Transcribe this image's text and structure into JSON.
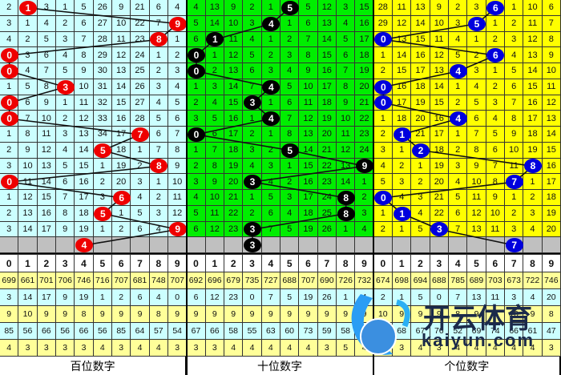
{
  "colors": {
    "panel_bg": [
      "#ccffff",
      "#00ee00",
      "#ffff00"
    ],
    "ball": [
      "#ee0000",
      "#000000",
      "#0000dd"
    ],
    "stat_bg": [
      "#ffff99",
      "#ccffff"
    ]
  },
  "panels": [
    {
      "label": "百位数字",
      "draws": [
        1,
        9,
        8,
        0,
        0,
        3,
        0,
        0,
        7,
        5,
        8,
        0,
        6,
        5,
        9,
        4
      ],
      "rows": [
        [
          2,
          1,
          3,
          1,
          5,
          26,
          9,
          21,
          6,
          4
        ],
        [
          3,
          1,
          4,
          2,
          6,
          27,
          10,
          22,
          7,
          9
        ],
        [
          4,
          2,
          5,
          3,
          7,
          28,
          11,
          23,
          8,
          1
        ],
        [
          0,
          3,
          6,
          4,
          8,
          29,
          12,
          24,
          1,
          2
        ],
        [
          0,
          4,
          7,
          5,
          9,
          30,
          13,
          25,
          2,
          3
        ],
        [
          1,
          5,
          8,
          3,
          10,
          31,
          14,
          26,
          3,
          4
        ],
        [
          0,
          6,
          9,
          1,
          11,
          32,
          15,
          27,
          4,
          5
        ],
        [
          0,
          7,
          10,
          2,
          12,
          33,
          16,
          28,
          5,
          6
        ],
        [
          1,
          8,
          11,
          3,
          13,
          34,
          17,
          7,
          6,
          7
        ],
        [
          2,
          9,
          12,
          4,
          14,
          5,
          18,
          1,
          7,
          8
        ],
        [
          3,
          10,
          13,
          5,
          15,
          1,
          19,
          2,
          8,
          9
        ],
        [
          0,
          11,
          14,
          6,
          16,
          2,
          20,
          3,
          1,
          10
        ],
        [
          1,
          12,
          15,
          7,
          17,
          3,
          6,
          4,
          2,
          11
        ],
        [
          2,
          13,
          16,
          8,
          18,
          5,
          1,
          5,
          3,
          12
        ],
        [
          3,
          14,
          17,
          9,
          19,
          1,
          2,
          6,
          4,
          9
        ]
      ],
      "stats": [
        [
          699,
          661,
          701,
          706,
          746,
          716,
          707,
          681,
          748,
          707
        ],
        [
          3,
          14,
          17,
          9,
          19,
          1,
          2,
          6,
          4,
          0
        ],
        [
          9,
          10,
          9,
          9,
          8,
          9,
          9,
          9,
          8,
          9
        ],
        [
          85,
          56,
          66,
          56,
          66,
          56,
          85,
          64,
          57,
          54
        ],
        [
          4,
          3,
          3,
          3,
          3,
          4,
          3,
          4,
          4,
          3
        ]
      ]
    },
    {
      "label": "十位数字",
      "draws": [
        5,
        4,
        1,
        0,
        0,
        4,
        3,
        4,
        0,
        5,
        9,
        3,
        8,
        8,
        3,
        3
      ],
      "rows": [
        [
          4,
          13,
          9,
          2,
          1,
          5,
          5,
          12,
          3,
          15
        ],
        [
          5,
          14,
          10,
          3,
          4,
          1,
          6,
          13,
          4,
          16
        ],
        [
          6,
          1,
          11,
          4,
          1,
          2,
          7,
          14,
          5,
          17
        ],
        [
          0,
          1,
          12,
          5,
          2,
          3,
          8,
          15,
          6,
          18
        ],
        [
          0,
          2,
          13,
          6,
          3,
          4,
          9,
          16,
          7,
          19
        ],
        [
          1,
          3,
          14,
          7,
          4,
          5,
          10,
          17,
          8,
          20
        ],
        [
          2,
          4,
          15,
          3,
          1,
          6,
          11,
          18,
          9,
          21
        ],
        [
          3,
          5,
          16,
          1,
          4,
          7,
          12,
          19,
          10,
          22
        ],
        [
          0,
          6,
          17,
          2,
          1,
          8,
          13,
          20,
          11,
          23
        ],
        [
          1,
          7,
          18,
          3,
          2,
          5,
          14,
          21,
          12,
          24
        ],
        [
          2,
          8,
          19,
          4,
          3,
          1,
          15,
          22,
          13,
          9
        ],
        [
          3,
          9,
          20,
          3,
          4,
          2,
          16,
          23,
          14,
          1
        ],
        [
          4,
          10,
          21,
          1,
          5,
          3,
          17,
          24,
          8,
          2
        ],
        [
          5,
          11,
          22,
          2,
          6,
          4,
          18,
          25,
          8,
          3
        ],
        [
          6,
          12,
          23,
          3,
          7,
          5,
          19,
          26,
          1,
          4
        ]
      ],
      "stats": [
        [
          692,
          696,
          679,
          735,
          727,
          688,
          707,
          690,
          726,
          732
        ],
        [
          6,
          12,
          23,
          0,
          7,
          5,
          19,
          26,
          1,
          4
        ],
        [
          9,
          9,
          9,
          9,
          9,
          9,
          9,
          9,
          9,
          9
        ],
        [
          67,
          66,
          58,
          55,
          63,
          60,
          73,
          59,
          58,
          56
        ],
        [
          3,
          3,
          4,
          4,
          4,
          4,
          4,
          3,
          5,
          4
        ]
      ]
    },
    {
      "label": "个位数字",
      "draws": [
        6,
        5,
        0,
        6,
        4,
        0,
        0,
        4,
        1,
        2,
        8,
        7,
        0,
        1,
        3,
        7
      ],
      "rows": [
        [
          28,
          11,
          13,
          9,
          2,
          3,
          6,
          1,
          10,
          6
        ],
        [
          29,
          12,
          14,
          10,
          3,
          5,
          1,
          2,
          11,
          7
        ],
        [
          0,
          13,
          15,
          11,
          4,
          1,
          2,
          3,
          12,
          8
        ],
        [
          1,
          14,
          16,
          12,
          5,
          2,
          6,
          4,
          13,
          9
        ],
        [
          2,
          15,
          17,
          13,
          4,
          3,
          1,
          5,
          14,
          10
        ],
        [
          0,
          16,
          18,
          14,
          1,
          4,
          2,
          6,
          15,
          11
        ],
        [
          0,
          17,
          19,
          15,
          2,
          5,
          3,
          7,
          16,
          12
        ],
        [
          1,
          18,
          20,
          16,
          4,
          6,
          4,
          8,
          17,
          13
        ],
        [
          2,
          1,
          21,
          17,
          1,
          7,
          5,
          9,
          18,
          14
        ],
        [
          3,
          1,
          2,
          18,
          2,
          8,
          6,
          10,
          19,
          15
        ],
        [
          4,
          2,
          1,
          19,
          3,
          9,
          7,
          11,
          8,
          16
        ],
        [
          5,
          3,
          2,
          20,
          4,
          10,
          8,
          7,
          1,
          17
        ],
        [
          0,
          4,
          3,
          21,
          5,
          11,
          9,
          1,
          2,
          18
        ],
        [
          1,
          1,
          4,
          22,
          6,
          12,
          10,
          2,
          3,
          19
        ],
        [
          2,
          1,
          5,
          3,
          7,
          13,
          11,
          3,
          4,
          20
        ]
      ],
      "stats": [
        [
          674,
          698,
          694,
          688,
          785,
          689,
          703,
          673,
          722,
          746
        ],
        [
          2,
          1,
          5,
          0,
          7,
          13,
          11,
          3,
          4,
          20
        ],
        [
          10,
          9,
          9,
          9,
          8,
          9,
          9,
          10,
          9,
          8
        ],
        [
          68,
          68,
          67,
          76,
          52,
          69,
          74,
          66,
          61,
          47
        ],
        [
          3,
          3,
          4,
          3,
          4,
          4,
          4,
          4,
          4,
          3
        ]
      ]
    }
  ],
  "digits": [
    0,
    1,
    2,
    3,
    4,
    5,
    6,
    7,
    8,
    9
  ],
  "watermark": {
    "cn": "开云体育",
    "url": "kaiyun.com"
  }
}
